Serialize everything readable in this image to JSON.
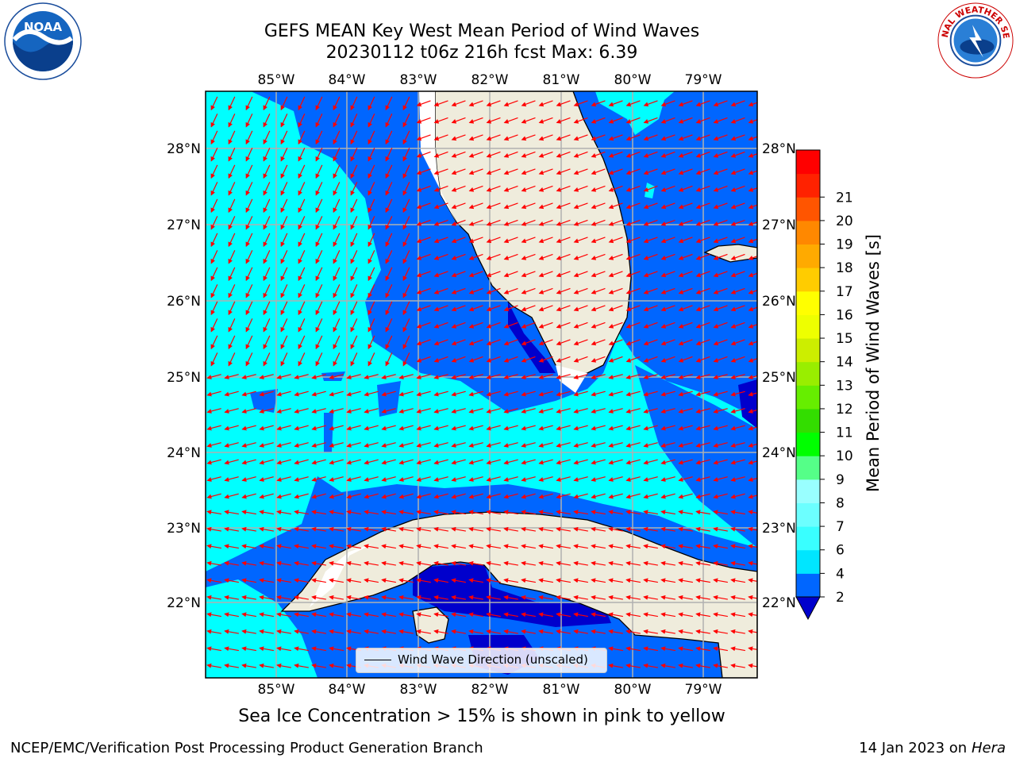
{
  "header": {
    "title_line1": "GEFS MEAN Key West Mean Period of Wind Waves",
    "title_line2": "20230112 t06z 216h fcst   Max: 6.39"
  },
  "logos": {
    "left_text": "NOAA",
    "left_ring_text": "NATIONAL OCEANIC AND ATMOSPHERIC ADMINISTRATION · U.S. DEPARTMENT OF COMMERCE",
    "right_ring_text": "NATIONAL WEATHER SERVICE"
  },
  "map": {
    "lon_labels": [
      "85°W",
      "84°W",
      "83°W",
      "82°W",
      "81°W",
      "80°W",
      "79°W"
    ],
    "lat_labels": [
      "28°N",
      "27°N",
      "26°N",
      "25°N",
      "24°N",
      "23°N",
      "22°N"
    ],
    "land_color": "#efecdc",
    "arrow_color": "#ff0000",
    "legend_label": "Wind Wave Direction (unscaled)"
  },
  "colorbar": {
    "label": "Mean Period of Wind Waves [s]",
    "ticks": [
      "2",
      "4",
      "6",
      "7",
      "8",
      "9",
      "10",
      "11",
      "12",
      "13",
      "14",
      "15",
      "16",
      "17",
      "18",
      "19",
      "20",
      "21"
    ],
    "colors": [
      "#0066ff",
      "#00e6ff",
      "#39ffff",
      "#6cffff",
      "#99ffff",
      "#55ff88",
      "#00ff00",
      "#33dd00",
      "#66ee00",
      "#99ee00",
      "#ccee00",
      "#eeff00",
      "#ffff00",
      "#ffcc00",
      "#ffaa00",
      "#ff8800",
      "#ff5500",
      "#ff2200",
      "#ff0000"
    ],
    "under_color": "#0000cc"
  },
  "footer": {
    "note": "Sea Ice Concentration > 15% is shown in pink to yellow",
    "left": "NCEP/EMC/Verification Post Processing Product Generation Branch",
    "right_date": "14 Jan 2023 on ",
    "right_host": "Hera"
  }
}
